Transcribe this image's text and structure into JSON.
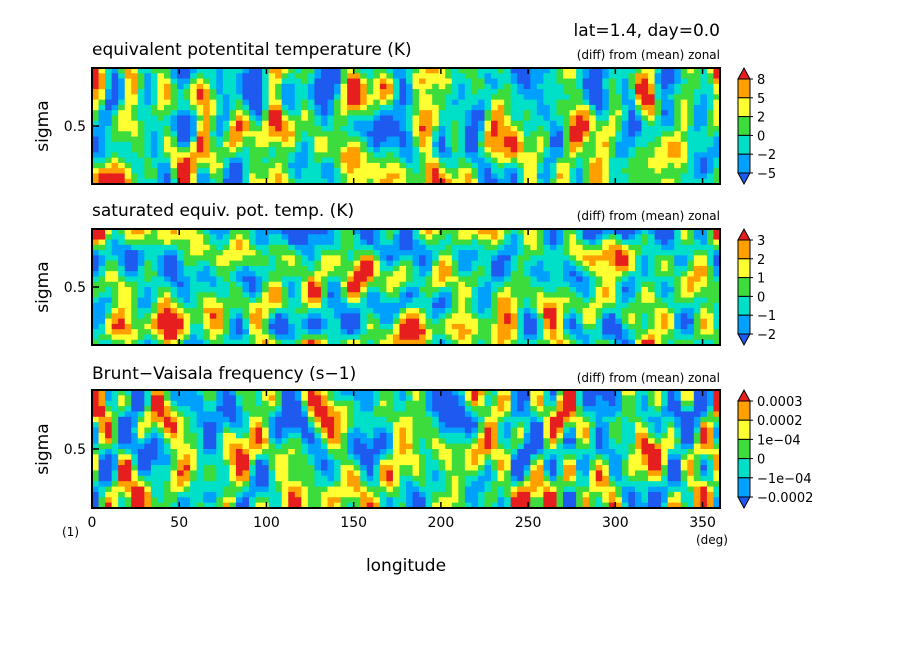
{
  "header": {
    "info": "lat=1.4, day=0.0",
    "figure_number": "(1)"
  },
  "chart_data": [
    {
      "type": "heatmap",
      "title": "equivalent potentital temperature (K)",
      "subtitle": "(diff) from (mean) zonal",
      "xlabel": "longitude",
      "xunit": "(deg)",
      "ylabel": "sigma",
      "xlim": [
        0,
        360
      ],
      "ylim": [
        1.0,
        0.0
      ],
      "xticks": [
        0,
        50,
        100,
        150,
        200,
        250,
        300,
        350
      ],
      "yticks": [
        0.5
      ],
      "yticklabels": [
        "0.5"
      ],
      "colorbar": {
        "levels": [
          -5,
          -2,
          0,
          2,
          5,
          8
        ],
        "labels": [
          "8",
          "5",
          "2",
          "0",
          "−2",
          "−5"
        ],
        "colors": [
          "#1e5af0",
          "#00a0ff",
          "#00e0c8",
          "#3cdc3c",
          "#ffff32",
          "#ffa000",
          "#e61e1e"
        ]
      }
    },
    {
      "type": "heatmap",
      "title": "saturated equiv. pot. temp. (K)",
      "subtitle": "(diff) from (mean) zonal",
      "xlabel": "longitude",
      "xunit": "(deg)",
      "ylabel": "sigma",
      "xlim": [
        0,
        360
      ],
      "ylim": [
        1.0,
        0.0
      ],
      "xticks": [
        0,
        50,
        100,
        150,
        200,
        250,
        300,
        350
      ],
      "yticks": [
        0.5
      ],
      "yticklabels": [
        "0.5"
      ],
      "colorbar": {
        "levels": [
          -2,
          -1,
          0,
          1,
          2,
          3
        ],
        "labels": [
          "3",
          "2",
          "1",
          "0",
          "−1",
          "−2"
        ],
        "colors": [
          "#1e5af0",
          "#00a0ff",
          "#00e0c8",
          "#3cdc3c",
          "#ffff32",
          "#ffa000",
          "#e61e1e"
        ]
      }
    },
    {
      "type": "heatmap",
      "title": "Brunt−Vaisala frequency (s−1)",
      "subtitle": "(diff) from (mean) zonal",
      "xlabel": "longitude",
      "xunit": "(deg)",
      "ylabel": "sigma",
      "xlim": [
        0,
        360
      ],
      "ylim": [
        1.0,
        0.0
      ],
      "xticks": [
        0,
        50,
        100,
        150,
        200,
        250,
        300,
        350
      ],
      "yticks": [
        0.5
      ],
      "yticklabels": [
        "0.5"
      ],
      "colorbar": {
        "levels": [
          -0.0002,
          -0.0001,
          0,
          0.0001,
          0.0002,
          0.0003
        ],
        "labels": [
          "0.0003",
          "0.0002",
          "1e−04",
          "0",
          "−1e−04",
          "−0.0002"
        ],
        "colors": [
          "#1e5af0",
          "#00a0ff",
          "#00e0c8",
          "#3cdc3c",
          "#ffff32",
          "#ffa000",
          "#e61e1e"
        ]
      }
    }
  ]
}
